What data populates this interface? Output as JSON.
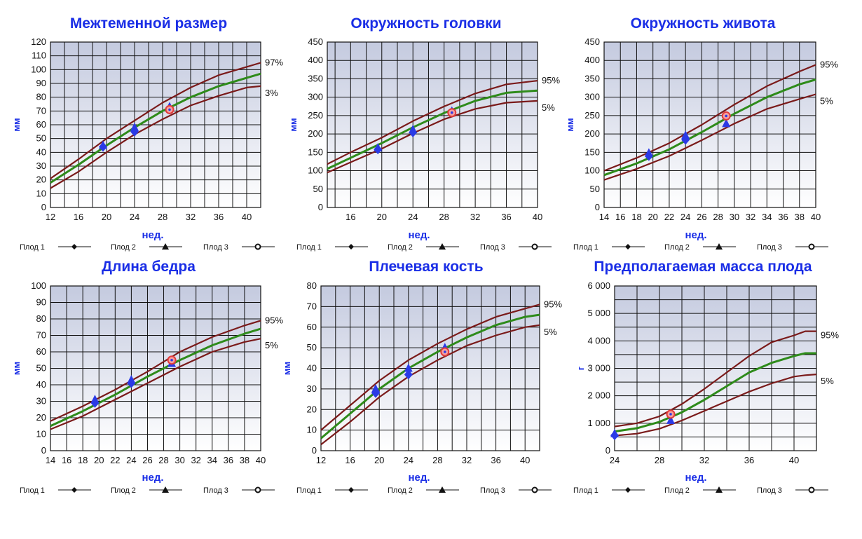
{
  "legend": {
    "fetus1": "Плод 1",
    "fetus2": "Плод 2",
    "fetus3": "Плод 3"
  },
  "colors": {
    "title": "#1a2ee6",
    "upper_line": "#7a1a1a",
    "median_line": "#2e8b1a",
    "lower_line": "#7a1a1a",
    "marker_blue": "#2a3ae6",
    "marker_red": "#e23a3a"
  },
  "chart_data": [
    {
      "type": "line",
      "title": "Межтеменной размер",
      "xlabel": "нед.",
      "ylabel": "мм",
      "xlim": [
        12,
        42
      ],
      "ylim": [
        0,
        120
      ],
      "xticks": [
        "12",
        "16",
        "20",
        "24",
        "28",
        "32",
        "36",
        "40"
      ],
      "yticks": [
        "0",
        "10",
        "20",
        "30",
        "40",
        "50",
        "60",
        "70",
        "80",
        "90",
        "100",
        "110",
        "120"
      ],
      "upper_label": "97%",
      "lower_label": "3%",
      "series": [
        {
          "role": "upper",
          "x": [
            12,
            16,
            20,
            24,
            28,
            32,
            36,
            40,
            42
          ],
          "y": [
            21,
            35,
            50,
            63,
            76,
            87,
            96,
            102,
            105
          ]
        },
        {
          "role": "median",
          "x": [
            12,
            16,
            20,
            24,
            28,
            32,
            36,
            40,
            42
          ],
          "y": [
            18,
            31,
            45,
            58,
            70,
            80,
            88,
            94,
            97
          ]
        },
        {
          "role": "lower",
          "x": [
            12,
            16,
            20,
            24,
            28,
            32,
            36,
            40,
            42
          ],
          "y": [
            14,
            26,
            40,
            53,
            64,
            74,
            81,
            87,
            88
          ]
        }
      ],
      "points": [
        {
          "fetus": "1",
          "x": 19.5,
          "y": 44
        },
        {
          "fetus": "2",
          "x": 19.5,
          "y": 45
        },
        {
          "fetus": "1",
          "x": 24,
          "y": 55
        },
        {
          "fetus": "2",
          "x": 24,
          "y": 58
        },
        {
          "fetus": "1",
          "x": 29,
          "y": 71
        },
        {
          "fetus": "2",
          "x": 29,
          "y": 73
        },
        {
          "fetus": "3",
          "x": 29,
          "y": 71
        }
      ]
    },
    {
      "type": "line",
      "title": "Окружность головки",
      "xlabel": "нед.",
      "ylabel": "мм",
      "xlim": [
        13,
        40
      ],
      "ylim": [
        0,
        450
      ],
      "xticks": [
        "16",
        "20",
        "24",
        "28",
        "32",
        "36",
        "40"
      ],
      "yticks": [
        "0",
        "50",
        "100",
        "150",
        "200",
        "250",
        "300",
        "350",
        "400",
        "450"
      ],
      "upper_label": "95%",
      "lower_label": "5%",
      "series": [
        {
          "role": "upper",
          "x": [
            13,
            16,
            20,
            24,
            28,
            32,
            36,
            40
          ],
          "y": [
            118,
            150,
            190,
            235,
            275,
            310,
            335,
            345
          ]
        },
        {
          "role": "median",
          "x": [
            13,
            16,
            20,
            24,
            28,
            32,
            36,
            40
          ],
          "y": [
            105,
            135,
            175,
            218,
            257,
            290,
            312,
            318
          ]
        },
        {
          "role": "lower",
          "x": [
            13,
            16,
            20,
            24,
            28,
            32,
            36,
            40
          ],
          "y": [
            95,
            123,
            160,
            202,
            240,
            268,
            285,
            290
          ]
        }
      ],
      "points": [
        {
          "fetus": "1",
          "x": 19.5,
          "y": 158
        },
        {
          "fetus": "2",
          "x": 19.5,
          "y": 162
        },
        {
          "fetus": "1",
          "x": 24,
          "y": 204
        },
        {
          "fetus": "2",
          "x": 24,
          "y": 212
        },
        {
          "fetus": "2",
          "x": 29,
          "y": 262
        },
        {
          "fetus": "3",
          "x": 29,
          "y": 258
        }
      ]
    },
    {
      "type": "line",
      "title": "Окружность живота",
      "xlabel": "нед.",
      "ylabel": "мм",
      "xlim": [
        14,
        40
      ],
      "ylim": [
        0,
        450
      ],
      "xticks": [
        "14",
        "16",
        "18",
        "20",
        "22",
        "24",
        "26",
        "28",
        "30",
        "32",
        "34",
        "36",
        "38",
        "40"
      ],
      "yticks": [
        "0",
        "50",
        "100",
        "150",
        "200",
        "250",
        "300",
        "350",
        "400",
        "450"
      ],
      "upper_label": "95%",
      "lower_label": "5%",
      "series": [
        {
          "role": "upper",
          "x": [
            14,
            18,
            22,
            26,
            30,
            34,
            38,
            40
          ],
          "y": [
            100,
            135,
            175,
            225,
            280,
            330,
            370,
            388
          ]
        },
        {
          "role": "median",
          "x": [
            14,
            18,
            22,
            26,
            30,
            34,
            38,
            40
          ],
          "y": [
            88,
            120,
            158,
            205,
            255,
            300,
            335,
            348
          ]
        },
        {
          "role": "lower",
          "x": [
            14,
            18,
            22,
            26,
            30,
            34,
            38,
            40
          ],
          "y": [
            75,
            105,
            140,
            183,
            228,
            268,
            295,
            308
          ]
        }
      ],
      "points": [
        {
          "fetus": "1",
          "x": 19.5,
          "y": 140
        },
        {
          "fetus": "2",
          "x": 19.5,
          "y": 148
        },
        {
          "fetus": "1",
          "x": 24,
          "y": 184
        },
        {
          "fetus": "2",
          "x": 24,
          "y": 196
        },
        {
          "fetus": "2",
          "x": 29,
          "y": 228
        },
        {
          "fetus": "3",
          "x": 29,
          "y": 249
        }
      ]
    },
    {
      "type": "line",
      "title": "Длина бедра",
      "xlabel": "нед.",
      "ylabel": "мм",
      "xlim": [
        14,
        40
      ],
      "ylim": [
        0,
        100
      ],
      "xticks": [
        "14",
        "16",
        "18",
        "20",
        "22",
        "24",
        "26",
        "28",
        "30",
        "32",
        "34",
        "36",
        "38",
        "40"
      ],
      "yticks": [
        "0",
        "10",
        "20",
        "30",
        "40",
        "50",
        "60",
        "70",
        "80",
        "90",
        "100"
      ],
      "upper_label": "95%",
      "lower_label": "5%",
      "series": [
        {
          "role": "upper",
          "x": [
            14,
            18,
            22,
            26,
            30,
            34,
            38,
            40
          ],
          "y": [
            18,
            27,
            37,
            48,
            60,
            69,
            76,
            79
          ]
        },
        {
          "role": "median",
          "x": [
            14,
            18,
            22,
            26,
            30,
            34,
            38,
            40
          ],
          "y": [
            15,
            24,
            34,
            45,
            55,
            64,
            71,
            74
          ]
        },
        {
          "role": "lower",
          "x": [
            14,
            18,
            22,
            26,
            30,
            34,
            38,
            40
          ],
          "y": [
            13,
            21,
            31,
            41,
            51,
            60,
            66,
            68
          ]
        }
      ],
      "points": [
        {
          "fetus": "1",
          "x": 19.5,
          "y": 29
        },
        {
          "fetus": "2",
          "x": 19.5,
          "y": 31
        },
        {
          "fetus": "1",
          "x": 24,
          "y": 41
        },
        {
          "fetus": "2",
          "x": 24,
          "y": 43
        },
        {
          "fetus": "2",
          "x": 29,
          "y": 53
        },
        {
          "fetus": "3",
          "x": 29,
          "y": 55
        }
      ]
    },
    {
      "type": "line",
      "title": "Плечевая кость",
      "xlabel": "нед.",
      "ylabel": "мм",
      "xlim": [
        12,
        42
      ],
      "ylim": [
        0,
        80
      ],
      "xticks": [
        "12",
        "16",
        "20",
        "24",
        "28",
        "32",
        "36",
        "40"
      ],
      "yticks": [
        "0",
        "10",
        "20",
        "30",
        "40",
        "50",
        "60",
        "70",
        "80"
      ],
      "upper_label": "95%",
      "lower_label": "5%",
      "series": [
        {
          "role": "upper",
          "x": [
            12,
            16,
            20,
            24,
            28,
            32,
            36,
            40,
            42
          ],
          "y": [
            10,
            22,
            34,
            44,
            52,
            59,
            65,
            69,
            71
          ]
        },
        {
          "role": "median",
          "x": [
            12,
            16,
            20,
            24,
            28,
            32,
            36,
            40,
            42
          ],
          "y": [
            6,
            18,
            30,
            40,
            48,
            55,
            61,
            65,
            66
          ]
        },
        {
          "role": "lower",
          "x": [
            12,
            16,
            20,
            24,
            28,
            32,
            36,
            40,
            42
          ],
          "y": [
            3,
            14,
            26,
            36,
            44,
            51,
            56,
            60,
            61
          ]
        }
      ],
      "points": [
        {
          "fetus": "1",
          "x": 19.5,
          "y": 28
        },
        {
          "fetus": "2",
          "x": 19.5,
          "y": 30
        },
        {
          "fetus": "1",
          "x": 24,
          "y": 37
        },
        {
          "fetus": "2",
          "x": 24,
          "y": 40
        },
        {
          "fetus": "2",
          "x": 29,
          "y": 50
        },
        {
          "fetus": "3",
          "x": 29,
          "y": 48
        }
      ]
    },
    {
      "type": "line",
      "title": "Предполагаемая масса плода",
      "xlabel": "нед.",
      "ylabel": "г",
      "xlim": [
        24,
        42
      ],
      "ylim": [
        0,
        6000
      ],
      "xticks": [
        "24",
        "28",
        "32",
        "36",
        "40"
      ],
      "yticks": [
        "0",
        "1 000",
        "2 000",
        "3 000",
        "4 000",
        "5 000",
        "6 000"
      ],
      "upper_label": "95%",
      "lower_label": "5%",
      "series": [
        {
          "role": "upper",
          "x": [
            24,
            26,
            28,
            30,
            32,
            34,
            36,
            38,
            40,
            41,
            42
          ],
          "y": [
            880,
            1000,
            1250,
            1700,
            2250,
            2850,
            3450,
            3950,
            4200,
            4350,
            4350
          ]
        },
        {
          "role": "median",
          "x": [
            24,
            26,
            28,
            30,
            32,
            34,
            36,
            38,
            40,
            41,
            42
          ],
          "y": [
            700,
            820,
            1050,
            1400,
            1850,
            2350,
            2850,
            3200,
            3450,
            3550,
            3550
          ]
        },
        {
          "role": "lower",
          "x": [
            24,
            26,
            28,
            30,
            32,
            34,
            36,
            38,
            40,
            41,
            42
          ],
          "y": [
            550,
            620,
            800,
            1100,
            1450,
            1800,
            2150,
            2450,
            2700,
            2750,
            2780
          ]
        }
      ],
      "points": [
        {
          "fetus": "1",
          "x": 24,
          "y": 560
        },
        {
          "fetus": "2",
          "x": 24,
          "y": 620
        },
        {
          "fetus": "2",
          "x": 29,
          "y": 1100
        },
        {
          "fetus": "3",
          "x": 29,
          "y": 1330
        }
      ]
    }
  ]
}
